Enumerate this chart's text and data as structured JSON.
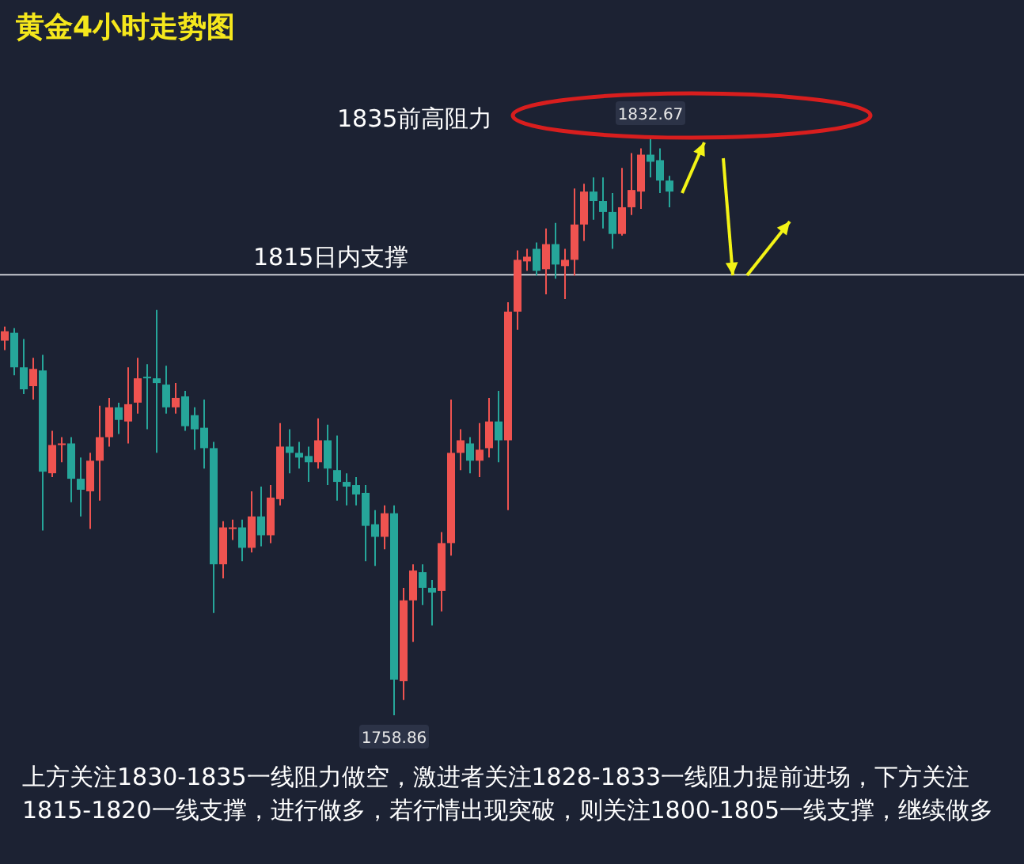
{
  "chart_data": {
    "type": "candlestick",
    "title": "黄金4小时走势图",
    "categories": [
      null,
      null,
      null,
      null,
      null,
      null,
      null,
      null,
      null,
      null,
      null,
      null,
      null,
      null,
      null,
      null,
      null,
      null,
      null,
      null,
      null,
      null,
      null,
      null,
      null,
      null,
      null,
      null,
      null,
      null,
      null,
      null,
      null,
      null,
      null,
      null,
      null,
      null,
      null,
      null,
      null,
      null,
      null,
      null,
      null,
      null,
      null,
      null,
      null,
      null,
      null,
      null,
      null,
      null,
      null,
      null,
      null,
      null,
      null,
      null,
      null,
      null,
      null,
      null,
      null,
      null,
      null,
      null,
      null,
      null,
      null
    ],
    "ohlc": [
      [
        1806.6,
        1808.4,
        1805.4,
        1807.8
      ],
      [
        1807.6,
        1808.2,
        1802.2,
        1803.2
      ],
      [
        1803.2,
        1806.8,
        1799.8,
        1800.4
      ],
      [
        1800.8,
        1804.4,
        1799.1,
        1803.0
      ],
      [
        1802.8,
        1804.8,
        1782.4,
        1789.9
      ],
      [
        1789.7,
        1795.1,
        1789.2,
        1793.3
      ],
      [
        1793.3,
        1794.3,
        1791.1,
        1793.5
      ],
      [
        1793.5,
        1794.3,
        1786.0,
        1789.0
      ],
      [
        1789.0,
        1791.7,
        1784.2,
        1787.6
      ],
      [
        1787.4,
        1792.3,
        1782.6,
        1791.3
      ],
      [
        1791.3,
        1798.3,
        1786.2,
        1794.3
      ],
      [
        1794.3,
        1799.3,
        1793.1,
        1798.1
      ],
      [
        1798.1,
        1798.7,
        1794.7,
        1796.5
      ],
      [
        1796.3,
        1803.2,
        1793.5,
        1798.5
      ],
      [
        1798.7,
        1804.4,
        1797.3,
        1801.8
      ],
      [
        1802.0,
        1803.6,
        1795.3,
        1801.8
      ],
      [
        1801.8,
        1810.5,
        1792.3,
        1801.2
      ],
      [
        1801.0,
        1803.4,
        1797.3,
        1798.1
      ],
      [
        1798.1,
        1801.2,
        1797.3,
        1799.3
      ],
      [
        1799.5,
        1800.2,
        1795.1,
        1795.7
      ],
      [
        1797.1,
        1798.1,
        1792.7,
        1795.3
      ],
      [
        1795.5,
        1799.1,
        1790.3,
        1792.9
      ],
      [
        1792.9,
        1793.7,
        1771.9,
        1778.1
      ],
      [
        1778.1,
        1783.6,
        1776.3,
        1782.8
      ],
      [
        1782.6,
        1783.8,
        1781.2,
        1782.8
      ],
      [
        1782.8,
        1783.8,
        1778.5,
        1780.2
      ],
      [
        1780.2,
        1787.4,
        1779.6,
        1784.2
      ],
      [
        1784.2,
        1788.0,
        1780.4,
        1781.8
      ],
      [
        1781.8,
        1788.2,
        1780.8,
        1786.6
      ],
      [
        1786.4,
        1796.1,
        1785.6,
        1793.1
      ],
      [
        1793.1,
        1795.3,
        1789.7,
        1792.3
      ],
      [
        1792.3,
        1793.7,
        1790.3,
        1791.7
      ],
      [
        1791.9,
        1793.1,
        1788.6,
        1791.1
      ],
      [
        1791.1,
        1796.7,
        1790.3,
        1793.9
      ],
      [
        1793.9,
        1795.9,
        1788.2,
        1790.3
      ],
      [
        1790.1,
        1794.5,
        1786.2,
        1788.6
      ],
      [
        1788.6,
        1789.7,
        1785.6,
        1788.0
      ],
      [
        1788.2,
        1789.2,
        1785.6,
        1787.0
      ],
      [
        1787.2,
        1788.2,
        1778.5,
        1783.0
      ],
      [
        1783.2,
        1785.0,
        1777.9,
        1781.6
      ],
      [
        1781.6,
        1785.6,
        1780.0,
        1784.6
      ],
      [
        1784.6,
        1785.6,
        1758.86,
        1763.4
      ],
      [
        1763.2,
        1775.1,
        1760.8,
        1773.5
      ],
      [
        1773.5,
        1778.1,
        1768.2,
        1777.3
      ],
      [
        1777.1,
        1778.1,
        1772.9,
        1775.1
      ],
      [
        1775.1,
        1776.1,
        1770.3,
        1774.5
      ],
      [
        1774.7,
        1782.2,
        1772.1,
        1780.8
      ],
      [
        1780.8,
        1799.1,
        1779.2,
        1792.3
      ],
      [
        1792.3,
        1795.3,
        1790.1,
        1793.9
      ],
      [
        1793.5,
        1794.3,
        1789.7,
        1791.3
      ],
      [
        1791.3,
        1796.1,
        1789.2,
        1792.7
      ],
      [
        1792.9,
        1799.3,
        1791.7,
        1796.3
      ],
      [
        1796.3,
        1800.2,
        1791.1,
        1793.9
      ],
      [
        1793.9,
        1811.5,
        1785.0,
        1810.3
      ],
      [
        1810.3,
        1818.1,
        1808.0,
        1816.9
      ],
      [
        1816.7,
        1818.3,
        1815.5,
        1817.3
      ],
      [
        1818.3,
        1819.1,
        1814.9,
        1815.5
      ],
      [
        1815.7,
        1820.9,
        1812.5,
        1818.9
      ],
      [
        1818.9,
        1821.6,
        1814.5,
        1816.3
      ],
      [
        1816.1,
        1818.3,
        1811.9,
        1816.9
      ],
      [
        1816.9,
        1826.0,
        1814.9,
        1821.4
      ],
      [
        1821.4,
        1826.6,
        1819.3,
        1825.6
      ],
      [
        1825.6,
        1827.4,
        1822.0,
        1824.4
      ],
      [
        1824.4,
        1827.4,
        1820.9,
        1823.0
      ],
      [
        1823.0,
        1825.4,
        1818.3,
        1820.2
      ],
      [
        1820.2,
        1828.6,
        1820.0,
        1823.6
      ],
      [
        1823.6,
        1830.5,
        1822.6,
        1825.8
      ],
      [
        1825.6,
        1831.1,
        1823.4,
        1830.3
      ],
      [
        1830.3,
        1832.67,
        1827.4,
        1829.4
      ],
      [
        1829.6,
        1831.1,
        1825.4,
        1827.0
      ],
      [
        1827.0,
        1827.6,
        1823.6,
        1825.6
      ]
    ],
    "colors": [
      "#ef5350",
      "#26a69a",
      "#26a69a",
      "#ef5350",
      "#26a69a",
      "#ef5350",
      "#ef5350",
      "#26a69a",
      "#26a69a",
      "#ef5350",
      "#ef5350",
      "#ef5350",
      "#26a69a",
      "#ef5350",
      "#ef5350",
      "#26a69a",
      "#26a69a",
      "#26a69a",
      "#ef5350",
      "#26a69a",
      "#26a69a",
      "#26a69a",
      "#26a69a",
      "#ef5350",
      "#ef5350",
      "#26a69a",
      "#ef5350",
      "#26a69a",
      "#ef5350",
      "#ef5350",
      "#26a69a",
      "#26a69a",
      "#26a69a",
      "#ef5350",
      "#26a69a",
      "#26a69a",
      "#26a69a",
      "#26a69a",
      "#26a69a",
      "#26a69a",
      "#ef5350",
      "#26a69a",
      "#ef5350",
      "#ef5350",
      "#26a69a",
      "#26a69a",
      "#ef5350",
      "#ef5350",
      "#ef5350",
      "#26a69a",
      "#ef5350",
      "#ef5350",
      "#26a69a",
      "#ef5350",
      "#ef5350",
      "#ef5350",
      "#26a69a",
      "#ef5350",
      "#26a69a",
      "#ef5350",
      "#ef5350",
      "#ef5350",
      "#26a69a",
      "#26a69a",
      "#26a69a",
      "#ef5350",
      "#ef5350",
      "#ef5350",
      "#26a69a",
      "#26a69a",
      "#26a69a"
    ],
    "ref_lines": [
      {
        "axis": "y",
        "value": 1815,
        "label": "1815日内支撑",
        "color": "#c8cbd2"
      }
    ],
    "annotations": [
      "1835前高阻力",
      "上方关注1830-1835一线阻力做空，激进者关注1828-1833一线阻力提前进场，下方关注1815-1820一线支撑，进行做多，若行情出现突破，则关注1800-1805一线支撑，继续做多",
      {
        "text": "1832.67",
        "y": 1832.67
      },
      {
        "text": "1758.86",
        "y": 1758.86
      }
    ]
  }
}
